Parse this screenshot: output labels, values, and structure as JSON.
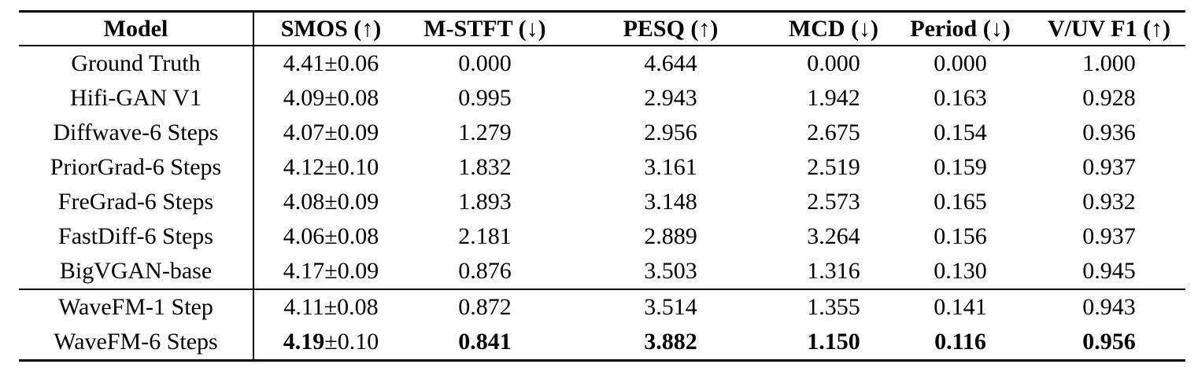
{
  "table": {
    "headers": {
      "model": "Model",
      "smos": "SMOS (↑)",
      "mstft": "M-STFT (↓)",
      "pesq": "PESQ (↑)",
      "mcd": "MCD (↓)",
      "period": "Period (↓)",
      "vuv_f1": "V/UV F1 (↑)"
    },
    "rows": [
      {
        "model": "Ground Truth",
        "smos": "4.41",
        "smos_pm": "±0.06",
        "mstft": "0.000",
        "pesq": "4.644",
        "mcd": "0.000",
        "period": "0.000",
        "vuv_f1": "1.000"
      },
      {
        "model": "Hifi-GAN V1",
        "smos": "4.09",
        "smos_pm": "±0.08",
        "mstft": "0.995",
        "pesq": "2.943",
        "mcd": "1.942",
        "period": "0.163",
        "vuv_f1": "0.928"
      },
      {
        "model": "Diffwave-6 Steps",
        "smos": "4.07",
        "smos_pm": "±0.09",
        "mstft": "1.279",
        "pesq": "2.956",
        "mcd": "2.675",
        "period": "0.154",
        "vuv_f1": "0.936"
      },
      {
        "model": "PriorGrad-6 Steps",
        "smos": "4.12",
        "smos_pm": "±0.10",
        "mstft": "1.832",
        "pesq": "3.161",
        "mcd": "2.519",
        "period": "0.159",
        "vuv_f1": "0.937"
      },
      {
        "model": "FreGrad-6 Steps",
        "smos": "4.08",
        "smos_pm": "±0.09",
        "mstft": "1.893",
        "pesq": "3.148",
        "mcd": "2.573",
        "period": "0.165",
        "vuv_f1": "0.932"
      },
      {
        "model": "FastDiff-6 Steps",
        "smos": "4.06",
        "smos_pm": "±0.08",
        "mstft": "2.181",
        "pesq": "2.889",
        "mcd": "3.264",
        "period": "0.156",
        "vuv_f1": "0.937"
      },
      {
        "model": "BigVGAN-base",
        "smos": "4.17",
        "smos_pm": "±0.09",
        "mstft": "0.876",
        "pesq": "3.503",
        "mcd": "1.316",
        "period": "0.130",
        "vuv_f1": "0.945"
      },
      {
        "model": "WaveFM-1 Step",
        "smos": "4.11",
        "smos_pm": "±0.08",
        "mstft": "0.872",
        "pesq": "3.514",
        "mcd": "1.355",
        "period": "0.141",
        "vuv_f1": "0.943"
      },
      {
        "model": "WaveFM-6 Steps",
        "smos": "4.19",
        "smos_pm": "±0.10",
        "mstft": "0.841",
        "pesq": "3.882",
        "mcd": "1.150",
        "period": "0.116",
        "vuv_f1": "0.956"
      }
    ]
  }
}
